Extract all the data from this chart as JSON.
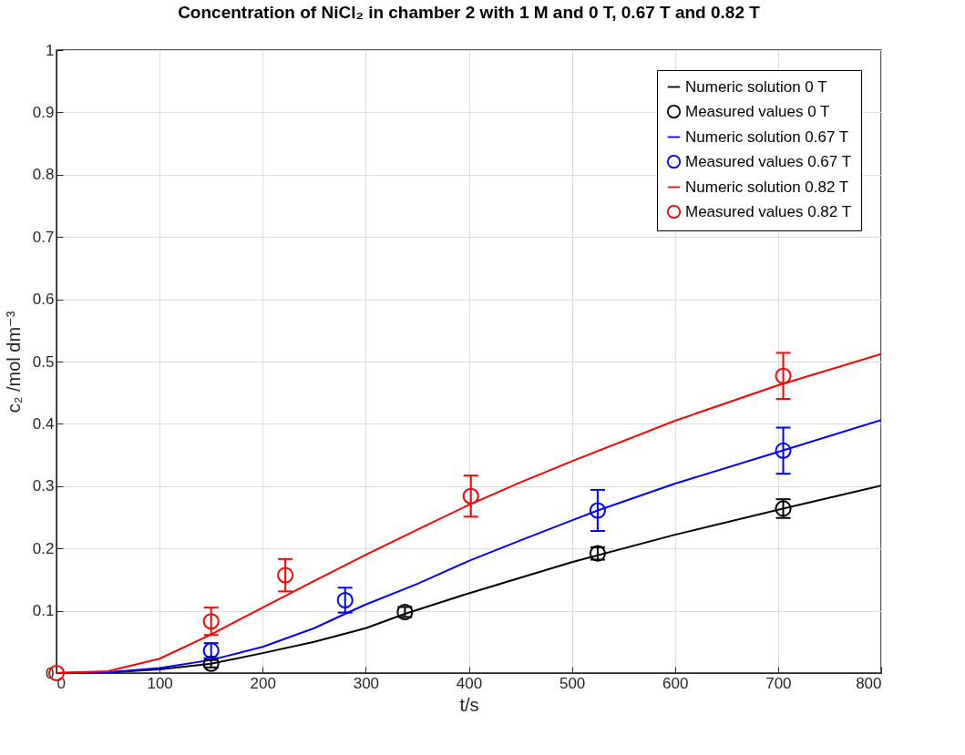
{
  "chart_data": {
    "type": "line",
    "title": "Concentration of NiCl₂ in chamber 2 with 1 M and 0 T, 0.67 T and 0.82 T",
    "xlabel": "t/s",
    "ylabel": "c₂ /mol dm⁻³",
    "xlim": [
      0,
      800
    ],
    "xticks": [
      0,
      100,
      200,
      300,
      400,
      500,
      600,
      700,
      800
    ],
    "ylim": [
      0,
      1
    ],
    "yticks": [
      0,
      0.1,
      0.2,
      0.3,
      0.4,
      0.5,
      0.6,
      0.7,
      0.8,
      0.9,
      1
    ],
    "grid": true,
    "legend": "top right",
    "line_style": "solid",
    "series": [
      {
        "name": "Numeric solution 0 T",
        "color": "#000000",
        "x": [
          0,
          50,
          100,
          150,
          200,
          250,
          300,
          338,
          400,
          500,
          600,
          700,
          800
        ],
        "values": [
          0,
          0.001,
          0.006,
          0.015,
          0.032,
          0.05,
          0.072,
          0.095,
          0.128,
          0.178,
          0.222,
          0.262,
          0.301
        ]
      },
      {
        "name": "Measured values 0 T",
        "type": "scatter",
        "marker": "circle",
        "color": "#000000",
        "x": [
          150,
          338,
          525,
          705
        ],
        "values": [
          0.015,
          0.098,
          0.192,
          0.264
        ],
        "errors": [
          0.006,
          0.008,
          0.01,
          0.015
        ]
      },
      {
        "name": "Numeric solution 0.67 T",
        "color": "#0000ff",
        "x": [
          0,
          50,
          100,
          150,
          200,
          250,
          280,
          300,
          350,
          400,
          450,
          500,
          525,
          600,
          700,
          800
        ],
        "values": [
          0,
          0.001,
          0.008,
          0.021,
          0.042,
          0.072,
          0.095,
          0.11,
          0.143,
          0.18,
          0.213,
          0.245,
          0.261,
          0.304,
          0.355,
          0.406
        ]
      },
      {
        "name": "Measured values 0.67 T",
        "type": "scatter",
        "marker": "circle",
        "color": "#0000ff",
        "x": [
          150,
          280,
          525,
          705
        ],
        "values": [
          0.036,
          0.117,
          0.261,
          0.357
        ],
        "errors": [
          0.012,
          0.02,
          0.033,
          0.037
        ]
      },
      {
        "name": "Numeric solution 0.82 T",
        "color": "#ff0000",
        "x": [
          0,
          50,
          100,
          150,
          200,
          250,
          300,
          350,
          400,
          450,
          500,
          600,
          700,
          800
        ],
        "values": [
          0,
          0.003,
          0.023,
          0.062,
          0.105,
          0.148,
          0.19,
          0.23,
          0.27,
          0.306,
          0.34,
          0.405,
          0.462,
          0.512
        ]
      },
      {
        "name": "Measured values 0.82 T",
        "type": "scatter",
        "marker": "circle",
        "color": "#ff0000",
        "x": [
          0,
          150,
          222,
          402,
          705
        ],
        "values": [
          0,
          0.083,
          0.157,
          0.284,
          0.477
        ],
        "errors": [
          null,
          0.022,
          0.026,
          0.033,
          0.037
        ]
      }
    ]
  }
}
